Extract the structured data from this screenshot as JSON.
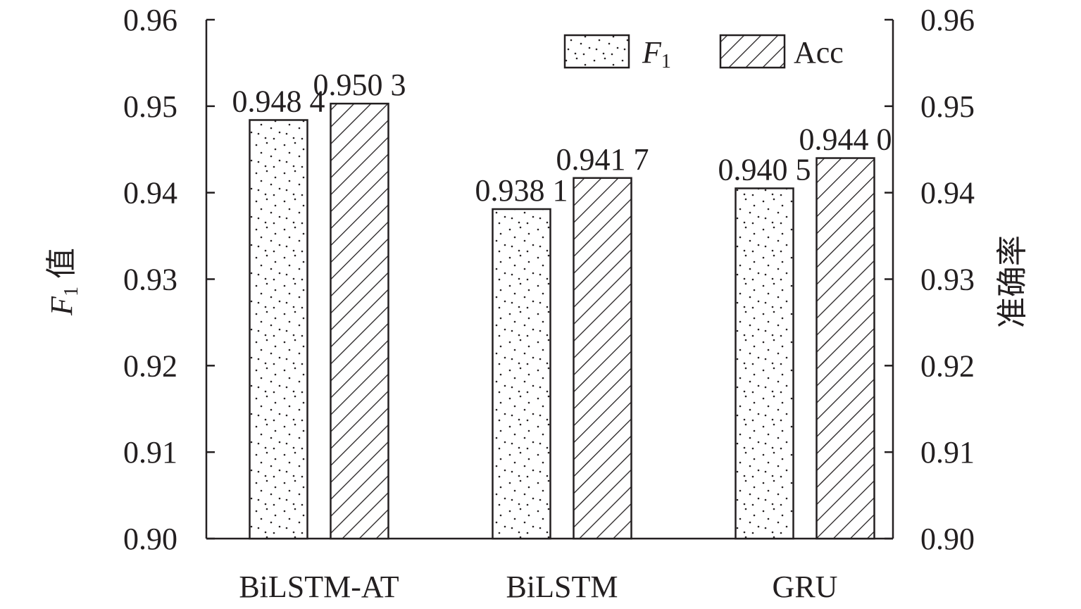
{
  "chart_data": {
    "type": "bar",
    "categories": [
      "BiLSTM-AT",
      "BiLSTM",
      "GRU"
    ],
    "series": [
      {
        "name": "F1",
        "name_main": "F",
        "name_sub": "1",
        "values": [
          0.9484,
          0.9381,
          0.9405
        ],
        "labels": [
          "0.948 4",
          "0.938 1",
          "0.940 5"
        ],
        "pattern": "dots"
      },
      {
        "name": "Acc",
        "values": [
          0.9503,
          0.9417,
          0.944
        ],
        "labels": [
          "0.950 3",
          "0.941 7",
          "0.944 0"
        ],
        "pattern": "hatch"
      }
    ],
    "ylim": [
      0.9,
      0.96
    ],
    "yticks": [
      "0.90",
      "0.91",
      "0.92",
      "0.93",
      "0.94",
      "0.95",
      "0.96"
    ],
    "y2lim": [
      0.9,
      0.96
    ],
    "y2ticks": [
      "0.90",
      "0.91",
      "0.92",
      "0.93",
      "0.94",
      "0.95",
      "0.96"
    ],
    "ylabel": {
      "main": "F",
      "sub": "1",
      "suffix": " 值"
    },
    "y2label": "准确率",
    "legend_position": "top-right",
    "grid": false,
    "colors": {
      "ink": "#231f20",
      "fill": "#ffffff"
    }
  }
}
